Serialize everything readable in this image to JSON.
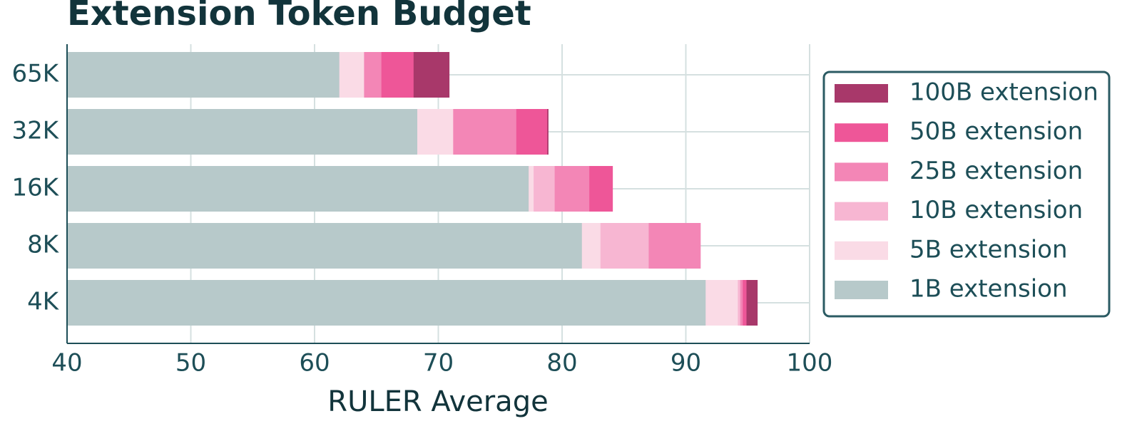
{
  "chart_data": {
    "type": "bar",
    "orientation": "horizontal",
    "title": "Extension Token Budget",
    "xlabel": "RULER Average",
    "categories": [
      "65K",
      "32K",
      "16K",
      "8K",
      "4K"
    ],
    "series": [
      {
        "name": "100B extension",
        "color": "#a8386a",
        "values": [
          70.9,
          78.9,
          83.0,
          89.0,
          95.8
        ]
      },
      {
        "name": "50B extension",
        "color": "#ee5698",
        "values": [
          68.0,
          78.8,
          84.1,
          90.0,
          94.9
        ]
      },
      {
        "name": "25B extension",
        "color": "#f386b6",
        "values": [
          65.4,
          76.3,
          82.2,
          91.2,
          94.6
        ]
      },
      {
        "name": "10B extension",
        "color": "#f7b6d2",
        "values": [
          63.5,
          70.0,
          79.4,
          87.0,
          94.4
        ]
      },
      {
        "name": "5B extension",
        "color": "#fadbe6",
        "values": [
          64.0,
          71.2,
          77.7,
          83.1,
          94.2
        ]
      },
      {
        "name": "1B extension",
        "color": "#b7c9ca",
        "values": [
          62.0,
          68.3,
          77.3,
          81.6,
          91.6
        ]
      }
    ],
    "xlim": [
      40,
      100
    ],
    "xticks": [
      40,
      50,
      60,
      70,
      80,
      90,
      100
    ],
    "grid": true,
    "legend": "right"
  }
}
